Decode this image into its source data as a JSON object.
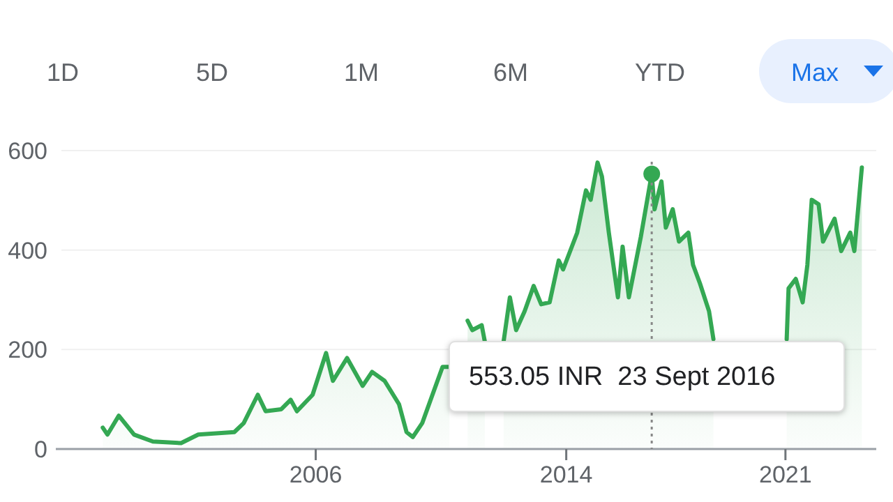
{
  "chart_data": {
    "type": "area",
    "annotations": [
      "1D",
      "5D",
      "1M",
      "6M",
      "YTD",
      "Max",
      "553.05 INR  23 Sept 2016"
    ],
    "xlim": [
      1997.7,
      2023.9
    ],
    "xticks": [
      2006,
      2014,
      2021
    ],
    "ylim": [
      0,
      600
    ],
    "yticks": [
      0,
      200,
      400,
      600
    ],
    "grid": "y",
    "ref_lines": [
      {
        "axis": "x",
        "value": 2016.73,
        "line_style": "dotted",
        "color": "#888888"
      }
    ],
    "series": [
      {
        "color": "#34a853",
        "x": [
          1999.2,
          1999.35,
          1999.71,
          2000.2,
          2000.8,
          2001.7,
          2002.25,
          2003.4,
          2003.7,
          2004.15,
          2004.4,
          2004.9,
          2005.2,
          2005.4,
          2005.9,
          2006.33,
          2006.55,
          2007.0,
          2007.5,
          2007.8,
          2008.2,
          2008.66,
          2008.9,
          2009.1,
          2009.4,
          2009.83,
          2010.05,
          2010.27,
          2010.4,
          2010.85,
          2011.0,
          2011.3,
          2011.4,
          2011.7,
          2012.0,
          2012.2,
          2012.4,
          2012.67,
          2012.96,
          2013.2,
          2013.47,
          2013.76,
          2013.9,
          2014.35,
          2014.63,
          2014.78,
          2015.0,
          2015.14,
          2015.36,
          2015.65,
          2015.8,
          2016.0,
          2016.38,
          2016.73,
          2016.82,
          2017.04,
          2017.18,
          2017.4,
          2017.6,
          2017.9,
          2018.05,
          2018.27,
          2018.56,
          2018.7,
          2019.8,
          2021.04,
          2021.1,
          2021.33,
          2021.55,
          2021.7,
          2021.84,
          2022.06,
          2022.2,
          2022.57,
          2022.78,
          2023.07,
          2023.2,
          2023.44
        ],
        "values": [
          43,
          29,
          67,
          29,
          15,
          12,
          29,
          34,
          52,
          109,
          76,
          80,
          99,
          76,
          109,
          193,
          137,
          183,
          127,
          155,
          137,
          90,
          34,
          24,
          52,
          127,
          165,
          165,
          null,
          258,
          239,
          249,
          216,
          null,
          216,
          305,
          239,
          277,
          328,
          291,
          295,
          379,
          361,
          435,
          520,
          501,
          576,
          548,
          435,
          305,
          407,
          305,
          426,
          553,
          482,
          538,
          445,
          482,
          417,
          435,
          370,
          333,
          277,
          221,
          null,
          221,
          323,
          342,
          295,
          370,
          501,
          492,
          417,
          463,
          398,
          435,
          398,
          566
        ]
      }
    ]
  }
}
